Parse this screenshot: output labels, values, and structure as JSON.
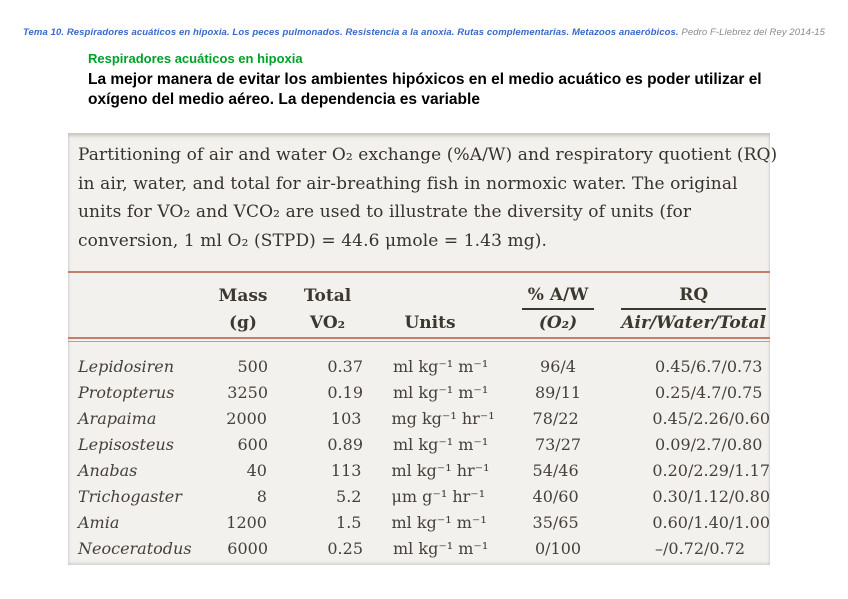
{
  "colors": {
    "header_blue": "#3a68c8",
    "header_gray": "#8a8a8a",
    "title_green": "#00a128",
    "scan_background": "#f3f1ee",
    "rule_red": "#c28069"
  },
  "header": {
    "course_line": "Tema 10. Respiradores acuáticos en hipoxia. Los peces pulmonados. Resistencia a la anoxia. Rutas complementarias. Metazoos anaeróbicos.",
    "author": "Pedro F-Llebrez del Rey 2014-15"
  },
  "content": {
    "title": "Respiradores acuáticos en hipoxia",
    "body": "La mejor manera de evitar los ambientes hipóxicos en el medio acuático es poder utilizar el oxígeno del medio aéreo. La dependencia es variable"
  },
  "figure": {
    "caption_lines": [
      "Partitioning of air and water O₂ exchange (%A/W) and respiratory quotient (RQ)",
      "in air, water, and total for air-breathing fish in normoxic water. The original",
      "units for VO₂ and VCO₂ are used to illustrate the diversity of units (for",
      "conversion, 1 ml O₂ (STPD) = 44.6 μmole = 1.43 mg)."
    ],
    "table": {
      "header": {
        "mass_top": "Mass",
        "mass_bottom": "(g)",
        "total_top": "Total",
        "total_bottom": "VO₂",
        "units": "Units",
        "aw_top": "% A/W",
        "aw_bottom": "(O₂)",
        "rq_top": "RQ",
        "rq_bottom": "Air/Water/Total"
      },
      "rows": [
        {
          "species": "Lepidosiren",
          "mass": "500",
          "vo2": "0.37",
          "units": "ml kg⁻¹ m⁻¹",
          "aw": "96/4",
          "rq": "0.45/6.7/0.73"
        },
        {
          "species": "Protopterus",
          "mass": "3250",
          "vo2": "0.19",
          "units": "ml kg⁻¹ m⁻¹",
          "aw": "89/11",
          "rq": "0.25/4.7/0.75"
        },
        {
          "species": "Arapaima",
          "mass": "2000",
          "vo2": "103",
          "units": "mg kg⁻¹ hr⁻¹",
          "aw": "78/22",
          "rq": "0.45/2.26/0.60"
        },
        {
          "species": "Lepisosteus",
          "mass": "600",
          "vo2": "0.89",
          "units": "ml kg⁻¹ m⁻¹",
          "aw": "73/27",
          "rq": "0.09/2.7/0.80"
        },
        {
          "species": "Anabas",
          "mass": "40",
          "vo2": "113",
          "units": "ml kg⁻¹ hr⁻¹",
          "aw": "54/46",
          "rq": "0.20/2.29/1.17"
        },
        {
          "species": "Trichogaster",
          "mass": "8",
          "vo2": "5.2",
          "units": "μm g⁻¹ hr⁻¹",
          "aw": "40/60",
          "rq": "0.30/1.12/0.80"
        },
        {
          "species": "Amia",
          "mass": "1200",
          "vo2": "1.5",
          "units": "ml kg⁻¹ m⁻¹",
          "aw": "35/65",
          "rq": "0.60/1.40/1.00"
        },
        {
          "species": "Neoceratodus",
          "mass": "6000",
          "vo2": "0.25",
          "units": "ml kg⁻¹ m⁻¹",
          "aw": "0/100",
          "rq": "–/0.72/0.72"
        }
      ]
    }
  }
}
